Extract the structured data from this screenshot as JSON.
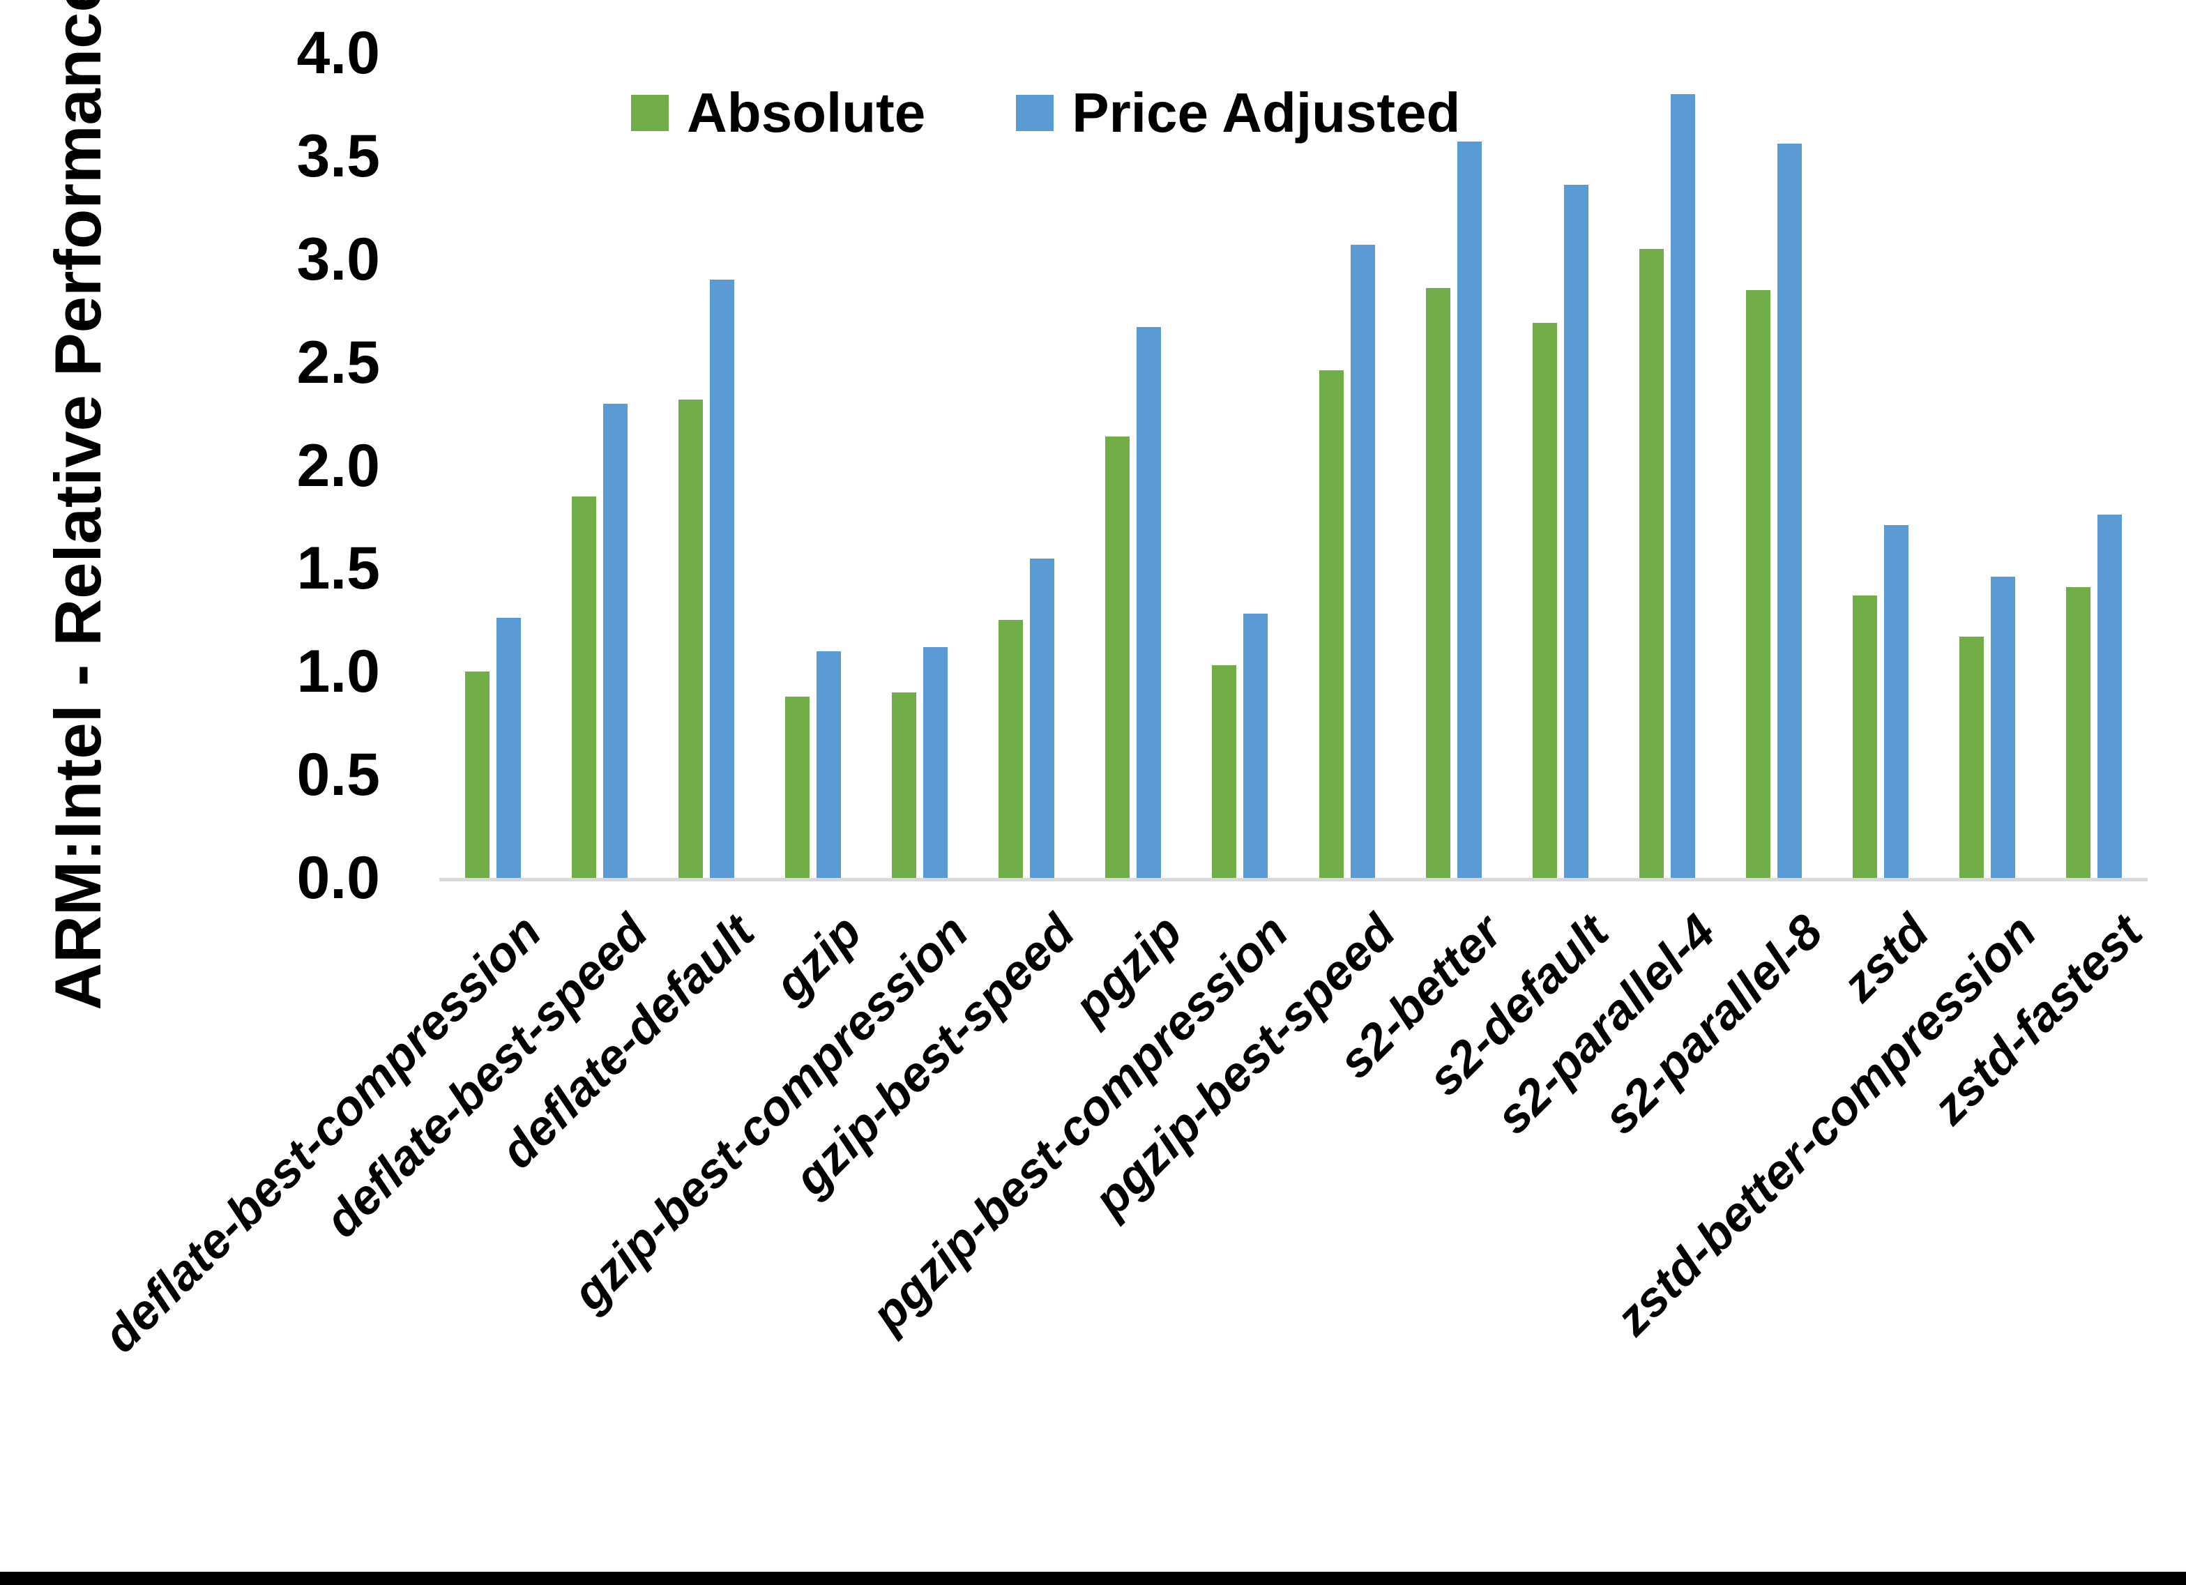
{
  "colors": {
    "background": "#FFFFFF",
    "axis_line": "#D9D9D9",
    "bottom_border": "#000000",
    "text": "#000000"
  },
  "legend": {
    "absolute_label": "Absolute",
    "price_adjusted_label": "Price Adjusted"
  },
  "chart_data": {
    "type": "bar",
    "title": "",
    "xlabel": "",
    "ylabel": "ARM:Intel - Relative Performance",
    "ylim": [
      0.0,
      4.0
    ],
    "ytick_step": 0.5,
    "ytick_labels": [
      "0.0",
      "0.5",
      "1.0",
      "1.5",
      "2.0",
      "2.5",
      "3.0",
      "3.5",
      "4.0"
    ],
    "grid": false,
    "legend_position": "top-center",
    "categories": [
      "deflate-best-compression",
      "deflate-best-speed",
      "deflate-default",
      "gzip",
      "gzip-best-compression",
      "gzip-best-speed",
      "pgzip",
      "pgzip-best-compression",
      "pgzip-best-speed",
      "s2-better",
      "s2-default",
      "s2-parallel-4",
      "s2-parallel-8",
      "zstd",
      "zstd-better-compression",
      "zstd-fastest"
    ],
    "series": [
      {
        "name": "Absolute",
        "color": "#70AD47",
        "values": [
          1.0,
          1.85,
          2.32,
          0.88,
          0.9,
          1.25,
          2.14,
          1.03,
          2.46,
          2.86,
          2.69,
          3.05,
          2.85,
          1.37,
          1.17,
          1.41
        ]
      },
      {
        "name": "Price Adjusted",
        "color": "#5B9BD5",
        "values": [
          1.26,
          2.3,
          2.9,
          1.1,
          1.12,
          1.55,
          2.67,
          1.28,
          3.07,
          3.57,
          3.36,
          3.8,
          3.56,
          1.71,
          1.46,
          1.76
        ]
      }
    ]
  }
}
